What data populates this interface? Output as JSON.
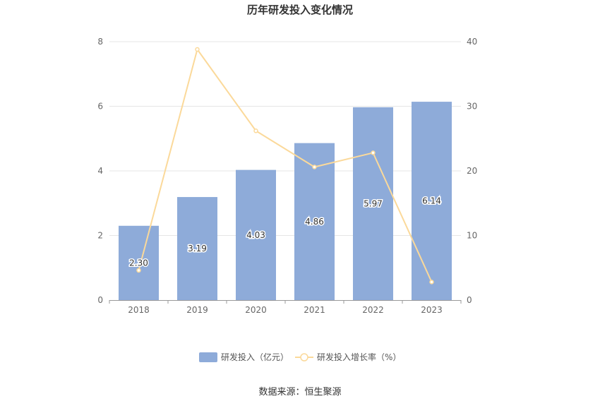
{
  "chart_data": {
    "type": "bar",
    "title": "历年研发投入变化情况",
    "categories": [
      "2018",
      "2019",
      "2020",
      "2021",
      "2022",
      "2023"
    ],
    "series": [
      {
        "name": "研发投入（亿元）",
        "type": "bar",
        "axis": "left",
        "color": "#8eabd9",
        "values": [
          2.3,
          3.19,
          4.03,
          4.86,
          5.97,
          6.14
        ],
        "labels": [
          "2.30",
          "3.19",
          "4.03",
          "4.86",
          "5.97",
          "6.14"
        ]
      },
      {
        "name": "研发投入增长率（%）",
        "type": "line",
        "axis": "right",
        "color": "#fbd99a",
        "values": [
          4.6,
          38.8,
          26.2,
          20.6,
          22.8,
          2.8
        ]
      }
    ],
    "y_left": {
      "ticks": [
        "0",
        "2",
        "4",
        "6",
        "8"
      ],
      "ylim": [
        0,
        8
      ]
    },
    "y_right": {
      "ticks": [
        "0",
        "10",
        "20",
        "30",
        "40"
      ],
      "ylim": [
        0,
        40
      ]
    },
    "grid": true,
    "legend_position": "bottom-center",
    "source": "数据来源：恒生聚源"
  }
}
